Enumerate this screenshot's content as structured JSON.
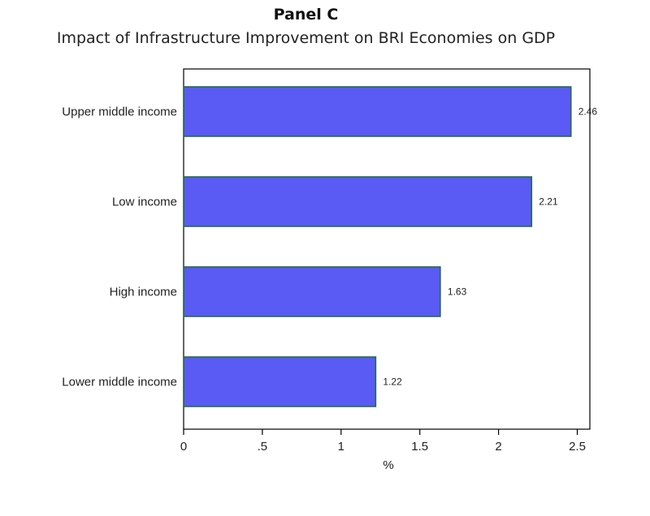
{
  "chart_data": {
    "type": "bar",
    "orientation": "horizontal",
    "title": "Panel C",
    "subtitle": "Impact of Infrastructure Improvement on BRI Economies on GDP",
    "categories": [
      "Upper middle income",
      "Low income",
      "High income",
      "Lower middle income"
    ],
    "values": [
      2.46,
      2.21,
      1.63,
      1.22
    ],
    "data_labels": [
      "2.46",
      "2.21",
      "1.63",
      "1.22"
    ],
    "xlabel": "%",
    "ylabel": "",
    "xlim": [
      0,
      2.58
    ],
    "xticks": [
      0,
      0.5,
      1,
      1.5,
      2,
      2.5
    ],
    "xtick_labels": [
      "0",
      ".5",
      "1",
      "1.5",
      "2",
      "2.5"
    ],
    "grid": false,
    "bar_color": "#5a5af5",
    "bar_edge_color": "#1f6b3a"
  }
}
